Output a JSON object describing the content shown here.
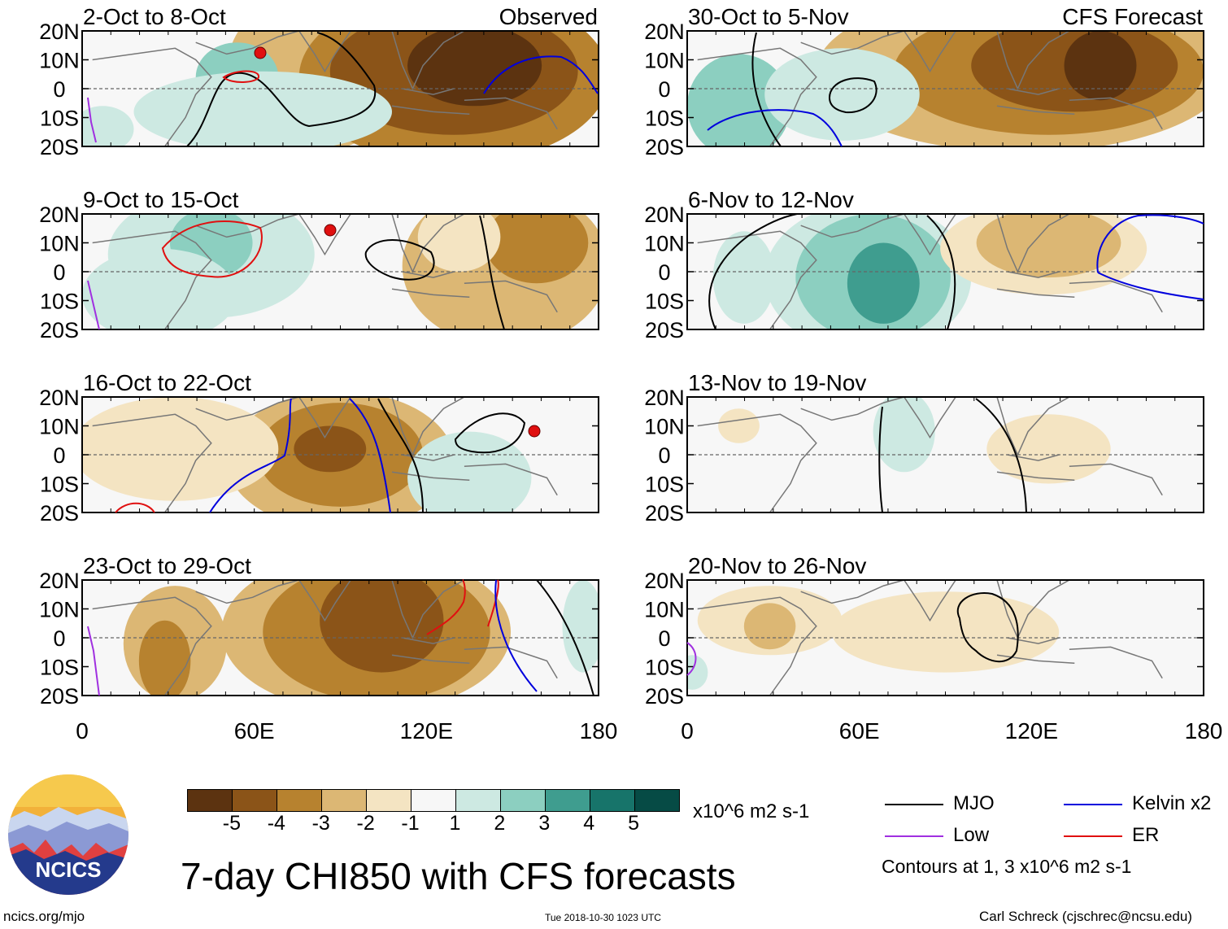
{
  "panels": [
    {
      "label": "2-Oct to 8-Oct",
      "tag": "Observed",
      "col": 0,
      "row": 0
    },
    {
      "label": "9-Oct to 15-Oct",
      "tag": "",
      "col": 0,
      "row": 1
    },
    {
      "label": "16-Oct to 22-Oct",
      "tag": "",
      "col": 0,
      "row": 2
    },
    {
      "label": "23-Oct to 29-Oct",
      "tag": "",
      "col": 0,
      "row": 3
    },
    {
      "label": "30-Oct to 5-Nov",
      "tag": "CFS Forecast",
      "col": 1,
      "row": 0
    },
    {
      "label": "6-Nov to 12-Nov",
      "tag": "",
      "col": 1,
      "row": 1
    },
    {
      "label": "13-Nov to 19-Nov",
      "tag": "",
      "col": 1,
      "row": 2
    },
    {
      "label": "20-Nov to 26-Nov",
      "tag": "",
      "col": 1,
      "row": 3
    }
  ],
  "lat_labels": [
    "20N",
    "10N",
    "0",
    "10S",
    "20S"
  ],
  "lon_labels": [
    "0",
    "60E",
    "120E",
    "180"
  ],
  "colorbar": {
    "colors": [
      "#5c3310",
      "#8b5418",
      "#b7822f",
      "#dcb774",
      "#f4e4c2",
      "#f7f7f7",
      "#cde9e2",
      "#8ccfc0",
      "#3f9d8f",
      "#17746a",
      "#064b45"
    ],
    "ticks": [
      "-5",
      "-4",
      "-3",
      "-2",
      "-1",
      "1",
      "2",
      "3",
      "4",
      "5"
    ],
    "units": "x10^6 m2 s-1"
  },
  "title": "7-day CHI850 with CFS forecasts",
  "legend": {
    "items": [
      {
        "label": "MJO",
        "color": "#000000"
      },
      {
        "label": "Kelvin x2",
        "color": "#0000dd"
      },
      {
        "label": "Low",
        "color": "#a030e0"
      },
      {
        "label": "ER",
        "color": "#e01010"
      }
    ],
    "note": "Contours at 1, 3 x10^6 m2 s-1"
  },
  "logo_text": "NCICS",
  "footer": {
    "left": "ncics.org/mjo",
    "center": "Tue 2018-10-30 1023 UTC",
    "right": "Carl Schreck (cjschrec@ncsu.edu)"
  }
}
